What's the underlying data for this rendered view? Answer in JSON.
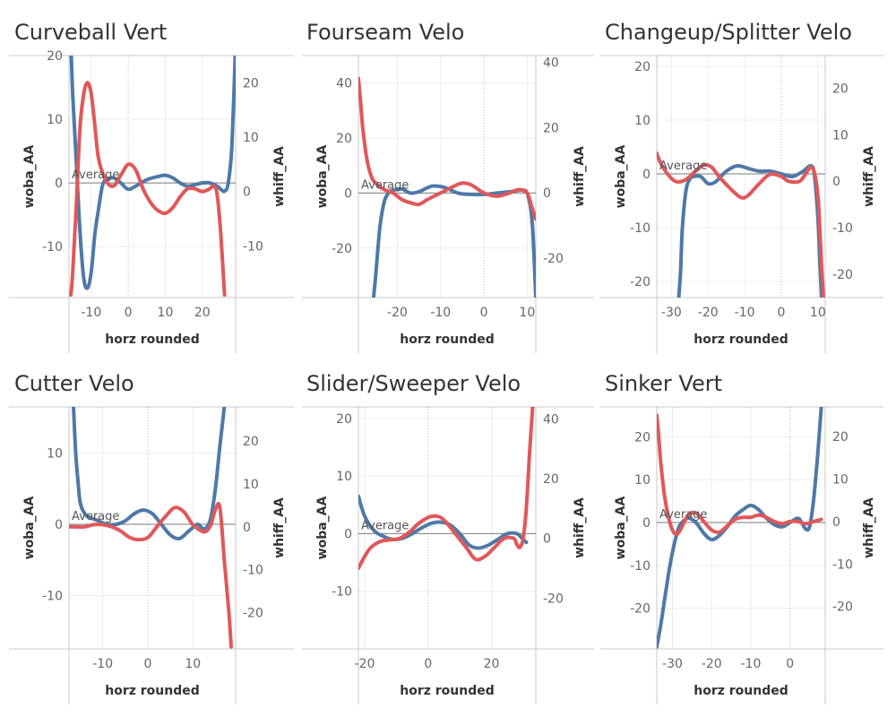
{
  "colors": {
    "woba": "#4e79a7",
    "whiff": "#e15759",
    "axis": "#c8c8c8",
    "grid": "#ececec",
    "zero": "#7a7a7a",
    "tick": "#666666",
    "label": "#333333"
  },
  "axis_labels": {
    "x": "horz rounded",
    "y_left": "woba_AA",
    "y_right": "whiff_AA",
    "reference": "Average"
  },
  "chart_data": [
    {
      "type": "line",
      "title": "Curveball Vert",
      "xlabel": "horz rounded",
      "ylabel": "woba_AA",
      "y2label": "whiff_AA",
      "xlim": [
        -16,
        29
      ],
      "ylim": [
        -18,
        20
      ],
      "y2lim": [
        -19.5,
        25
      ],
      "xticks": [
        -10,
        0,
        10,
        20
      ],
      "yticks": [
        -10,
        0,
        10,
        20
      ],
      "y2ticks": [
        -10,
        0,
        10,
        20
      ],
      "reference_line": {
        "label": "Average",
        "value": 0
      },
      "series": [
        {
          "name": "woba_AA",
          "axis": "left",
          "color": "#4e79a7",
          "x": [
            -15.5,
            -15,
            -14,
            -13,
            -12,
            -11,
            -10,
            -9,
            -8,
            -7,
            -6,
            -4,
            -2,
            0,
            2,
            5,
            8,
            10,
            12,
            14,
            16,
            18,
            20,
            22,
            24,
            25,
            26,
            27,
            28,
            29
          ],
          "y": [
            22,
            14,
            3,
            -8,
            -15,
            -16.5,
            -14,
            -8,
            -4,
            -0.5,
            0.5,
            0.8,
            0,
            -1,
            -0.5,
            0.5,
            1,
            1.2,
            0.8,
            0,
            -0.5,
            -0.3,
            0,
            0,
            -0.5,
            -1,
            -1.3,
            0,
            6,
            22
          ]
        },
        {
          "name": "whiff_AA",
          "axis": "right",
          "color": "#e15759",
          "x": [
            -15.5,
            -15,
            -14,
            -13,
            -12,
            -11,
            -10,
            -9,
            -8,
            -6,
            -4,
            -2,
            0,
            2,
            4,
            6,
            8,
            10,
            12,
            14,
            16,
            18,
            20,
            22,
            23,
            24,
            25,
            26
          ],
          "y": [
            -19,
            -15,
            -2,
            12,
            18,
            20,
            18,
            12,
            6,
            2,
            1,
            3,
            5,
            4,
            0.5,
            -2,
            -3.5,
            -4,
            -3,
            -1,
            0.5,
            0.5,
            0,
            0.5,
            1,
            -0.5,
            -8,
            -19
          ]
        }
      ]
    },
    {
      "type": "line",
      "title": "Fourseam Velo",
      "xlabel": "horz rounded",
      "ylabel": "woba_AA",
      "y2label": "whiff_AA",
      "xlim": [
        -29,
        12
      ],
      "ylim": [
        -38,
        50
      ],
      "y2lim": [
        -32,
        42
      ],
      "xticks": [
        -20,
        -10,
        0,
        10
      ],
      "yticks": [
        -20,
        0,
        20,
        40
      ],
      "y2ticks": [
        -20,
        0,
        20,
        40
      ],
      "reference_line": {
        "label": "Average",
        "value": 0
      },
      "series": [
        {
          "name": "woba_AA",
          "axis": "left",
          "color": "#4e79a7",
          "x": [
            -25.5,
            -25,
            -24,
            -23,
            -22,
            -21,
            -19,
            -17,
            -15,
            -12,
            -9,
            -6,
            -3,
            0,
            3,
            6,
            8,
            9,
            10,
            11,
            11.5,
            12
          ],
          "y": [
            -38,
            -30,
            -12,
            -3,
            0,
            1,
            1.5,
            0,
            0.5,
            2.5,
            2,
            0,
            -0.5,
            -0.5,
            0,
            0.5,
            1,
            1,
            0,
            -8,
            -20,
            -38
          ]
        },
        {
          "name": "whiff_AA",
          "axis": "right",
          "color": "#e15759",
          "x": [
            -29,
            -28.5,
            -28,
            -27,
            -26,
            -25,
            -23,
            -21,
            -19,
            -17,
            -15,
            -13,
            -10,
            -7,
            -5,
            -3,
            0,
            3,
            6,
            8,
            10,
            11,
            12
          ],
          "y": [
            35,
            28,
            20,
            10,
            5,
            3,
            1,
            0,
            -2,
            -3,
            -3.5,
            -2,
            0,
            2,
            3,
            2.5,
            0,
            -1,
            0,
            1,
            0,
            -4,
            -8
          ]
        }
      ]
    },
    {
      "type": "line",
      "title": "Changeup/Splitter Velo",
      "xlabel": "horz rounded",
      "ylabel": "woba_AA",
      "y2label": "whiff_AA",
      "xlim": [
        -34,
        12
      ],
      "ylim": [
        -23,
        22
      ],
      "y2lim": [
        -25,
        27
      ],
      "xticks": [
        -30,
        -20,
        -10,
        0,
        10
      ],
      "yticks": [
        -20,
        -10,
        0,
        10,
        20
      ],
      "y2ticks": [
        -20,
        -10,
        0,
        10,
        20
      ],
      "reference_line": {
        "label": "Average",
        "value": 0
      },
      "series": [
        {
          "name": "woba_AA",
          "axis": "left",
          "color": "#4e79a7",
          "x": [
            -28,
            -27.5,
            -27,
            -26,
            -25,
            -24,
            -22,
            -20,
            -18,
            -15,
            -12,
            -9,
            -6,
            -3,
            0,
            3,
            6,
            8,
            9,
            10,
            10.5,
            11
          ],
          "y": [
            -23,
            -18,
            -10,
            -3,
            -1,
            -0.5,
            -0.5,
            -1.8,
            -1.5,
            0.5,
            1.5,
            1,
            0.5,
            0.5,
            0,
            -0.5,
            0.5,
            1.5,
            0,
            -8,
            -16,
            -23
          ]
        },
        {
          "name": "whiff_AA",
          "axis": "right",
          "color": "#e15759",
          "x": [
            -34,
            -33,
            -31,
            -29,
            -27,
            -25,
            -23,
            -21,
            -19,
            -17,
            -14,
            -11,
            -9,
            -6,
            -3,
            0,
            2,
            5,
            7,
            8,
            9,
            10,
            10.5,
            11,
            11.5
          ],
          "y": [
            6,
            4,
            1.5,
            0,
            0,
            1,
            2.5,
            3.5,
            3,
            1,
            -1.5,
            -3.5,
            -3,
            -0.5,
            1.5,
            1,
            0,
            0,
            2,
            3,
            2,
            -3,
            -10,
            -18,
            -25
          ]
        }
      ]
    },
    {
      "type": "line",
      "title": "Cutter Velo",
      "xlabel": "horz rounded",
      "ylabel": "woba_AA",
      "y2label": "whiff_AA",
      "xlim": [
        -17.5,
        19.5
      ],
      "ylim": [
        -17.5,
        16.5
      ],
      "y2lim": [
        -28.5,
        28
      ],
      "xticks": [
        -10,
        0,
        10
      ],
      "yticks": [
        -10,
        0,
        10
      ],
      "y2ticks": [
        -20,
        -10,
        0,
        10,
        20
      ],
      "reference_line": {
        "label": "Average",
        "value": 0
      },
      "series": [
        {
          "name": "woba_AA",
          "axis": "left",
          "color": "#4e79a7",
          "x": [
            -16.5,
            -16,
            -15.5,
            -15,
            -14,
            -13,
            -11,
            -9,
            -7,
            -5,
            -3,
            -1,
            1,
            3,
            5,
            7,
            9,
            11,
            12,
            13,
            14,
            15,
            16,
            17
          ],
          "y": [
            16.5,
            10,
            6,
            3,
            1.5,
            1,
            0.5,
            0,
            0,
            0.5,
            1.5,
            2,
            1.5,
            0,
            -1.5,
            -2,
            -1,
            0,
            -0.5,
            -0.5,
            1,
            5,
            11,
            16.5
          ]
        },
        {
          "name": "whiff_AA",
          "axis": "right",
          "color": "#e15759",
          "x": [
            -17.5,
            -16,
            -14,
            -12,
            -10,
            -8,
            -6,
            -4,
            -2,
            0,
            2,
            4,
            6,
            8,
            10,
            12,
            13,
            14,
            15,
            16,
            17,
            18,
            18.5
          ],
          "y": [
            0,
            0,
            0,
            0.5,
            0.5,
            0,
            -1,
            -2.5,
            -3,
            -2.5,
            0,
            2.5,
            4.5,
            3.5,
            0.5,
            -1,
            -1,
            0.5,
            4,
            4.5,
            -8,
            -20,
            -28
          ]
        }
      ]
    },
    {
      "type": "line",
      "title": "Slider/Sweeper Velo",
      "xlabel": "horz rounded",
      "ylabel": "woba_AA",
      "y2label": "whiff_AA",
      "xlim": [
        -22,
        34
      ],
      "ylim": [
        -20,
        22
      ],
      "y2lim": [
        -37,
        44
      ],
      "xticks": [
        -20,
        0,
        20
      ],
      "yticks": [
        -10,
        0,
        10,
        20
      ],
      "y2ticks": [
        -20,
        0,
        20,
        40
      ],
      "reference_line": {
        "label": "Average",
        "value": 0
      },
      "series": [
        {
          "name": "woba_AA",
          "axis": "left",
          "color": "#4e79a7",
          "x": [
            -22,
            -20,
            -17,
            -14,
            -11,
            -8,
            -5,
            -2,
            1,
            4,
            7,
            10,
            13,
            16,
            19,
            22,
            25,
            28,
            30,
            31
          ],
          "y": [
            6.5,
            3,
            0.5,
            -0.5,
            -1,
            -0.8,
            0,
            1,
            1.8,
            2,
            1.5,
            0,
            -2,
            -2.5,
            -2,
            -1,
            0,
            0,
            -1,
            -1.5
          ]
        },
        {
          "name": "whiff_AA",
          "axis": "right",
          "color": "#e15759",
          "x": [
            -22,
            -20,
            -18,
            -15,
            -12,
            -9,
            -6,
            -3,
            0,
            2,
            4,
            6,
            9,
            12,
            15,
            18,
            21,
            24,
            27,
            28,
            29,
            30,
            31,
            32,
            33
          ],
          "y": [
            -10,
            -6,
            -3,
            -1,
            -0.5,
            0,
            2,
            5,
            7,
            7.5,
            7,
            5,
            1,
            -3,
            -7,
            -6,
            -3,
            0,
            0,
            -2,
            -3,
            0,
            10,
            28,
            44
          ]
        }
      ]
    },
    {
      "type": "line",
      "title": "Sinker Vert",
      "xlabel": "horz rounded",
      "ylabel": "woba_AA",
      "y2label": "whiff_AA",
      "xlim": [
        -34,
        9
      ],
      "ylim": [
        -29.5,
        27
      ],
      "y2lim": [
        -30,
        27
      ],
      "xticks": [
        -30,
        -20,
        -10,
        0
      ],
      "yticks": [
        -20,
        -10,
        0,
        10,
        20
      ],
      "y2ticks": [
        -20,
        -10,
        0,
        10,
        20
      ],
      "reference_line": {
        "label": "Average",
        "value": 0
      },
      "series": [
        {
          "name": "woba_AA",
          "axis": "left",
          "color": "#4e79a7",
          "x": [
            -34,
            -33,
            -32,
            -31,
            -30,
            -29,
            -28,
            -26,
            -24,
            -22,
            -20,
            -18,
            -16,
            -14,
            -12,
            -10,
            -8,
            -6,
            -4,
            -2,
            0,
            2,
            3,
            4,
            5,
            6,
            7,
            8
          ],
          "y": [
            -29,
            -24,
            -18,
            -12,
            -7,
            -3,
            -0.5,
            1,
            0,
            -2.5,
            -4,
            -3,
            -1,
            1.5,
            3,
            4,
            3,
            1,
            -0.5,
            -1,
            0,
            1,
            0,
            -1.5,
            -1,
            5,
            15,
            27
          ]
        },
        {
          "name": "whiff_AA",
          "axis": "right",
          "color": "#e15759",
          "x": [
            -34,
            -33.5,
            -33,
            -32,
            -31,
            -30,
            -29,
            -28,
            -26,
            -24,
            -22,
            -20,
            -18,
            -16,
            -14,
            -12,
            -10,
            -8,
            -6,
            -4,
            -2,
            0,
            2,
            4,
            6,
            8
          ],
          "y": [
            25,
            20,
            14,
            6,
            1,
            -2,
            -3,
            -2,
            1.5,
            2,
            0,
            -2,
            -2.5,
            -1,
            0.5,
            1,
            1,
            1.5,
            1,
            0,
            -0.5,
            0,
            0,
            -0.5,
            0,
            0.5
          ]
        }
      ]
    }
  ]
}
